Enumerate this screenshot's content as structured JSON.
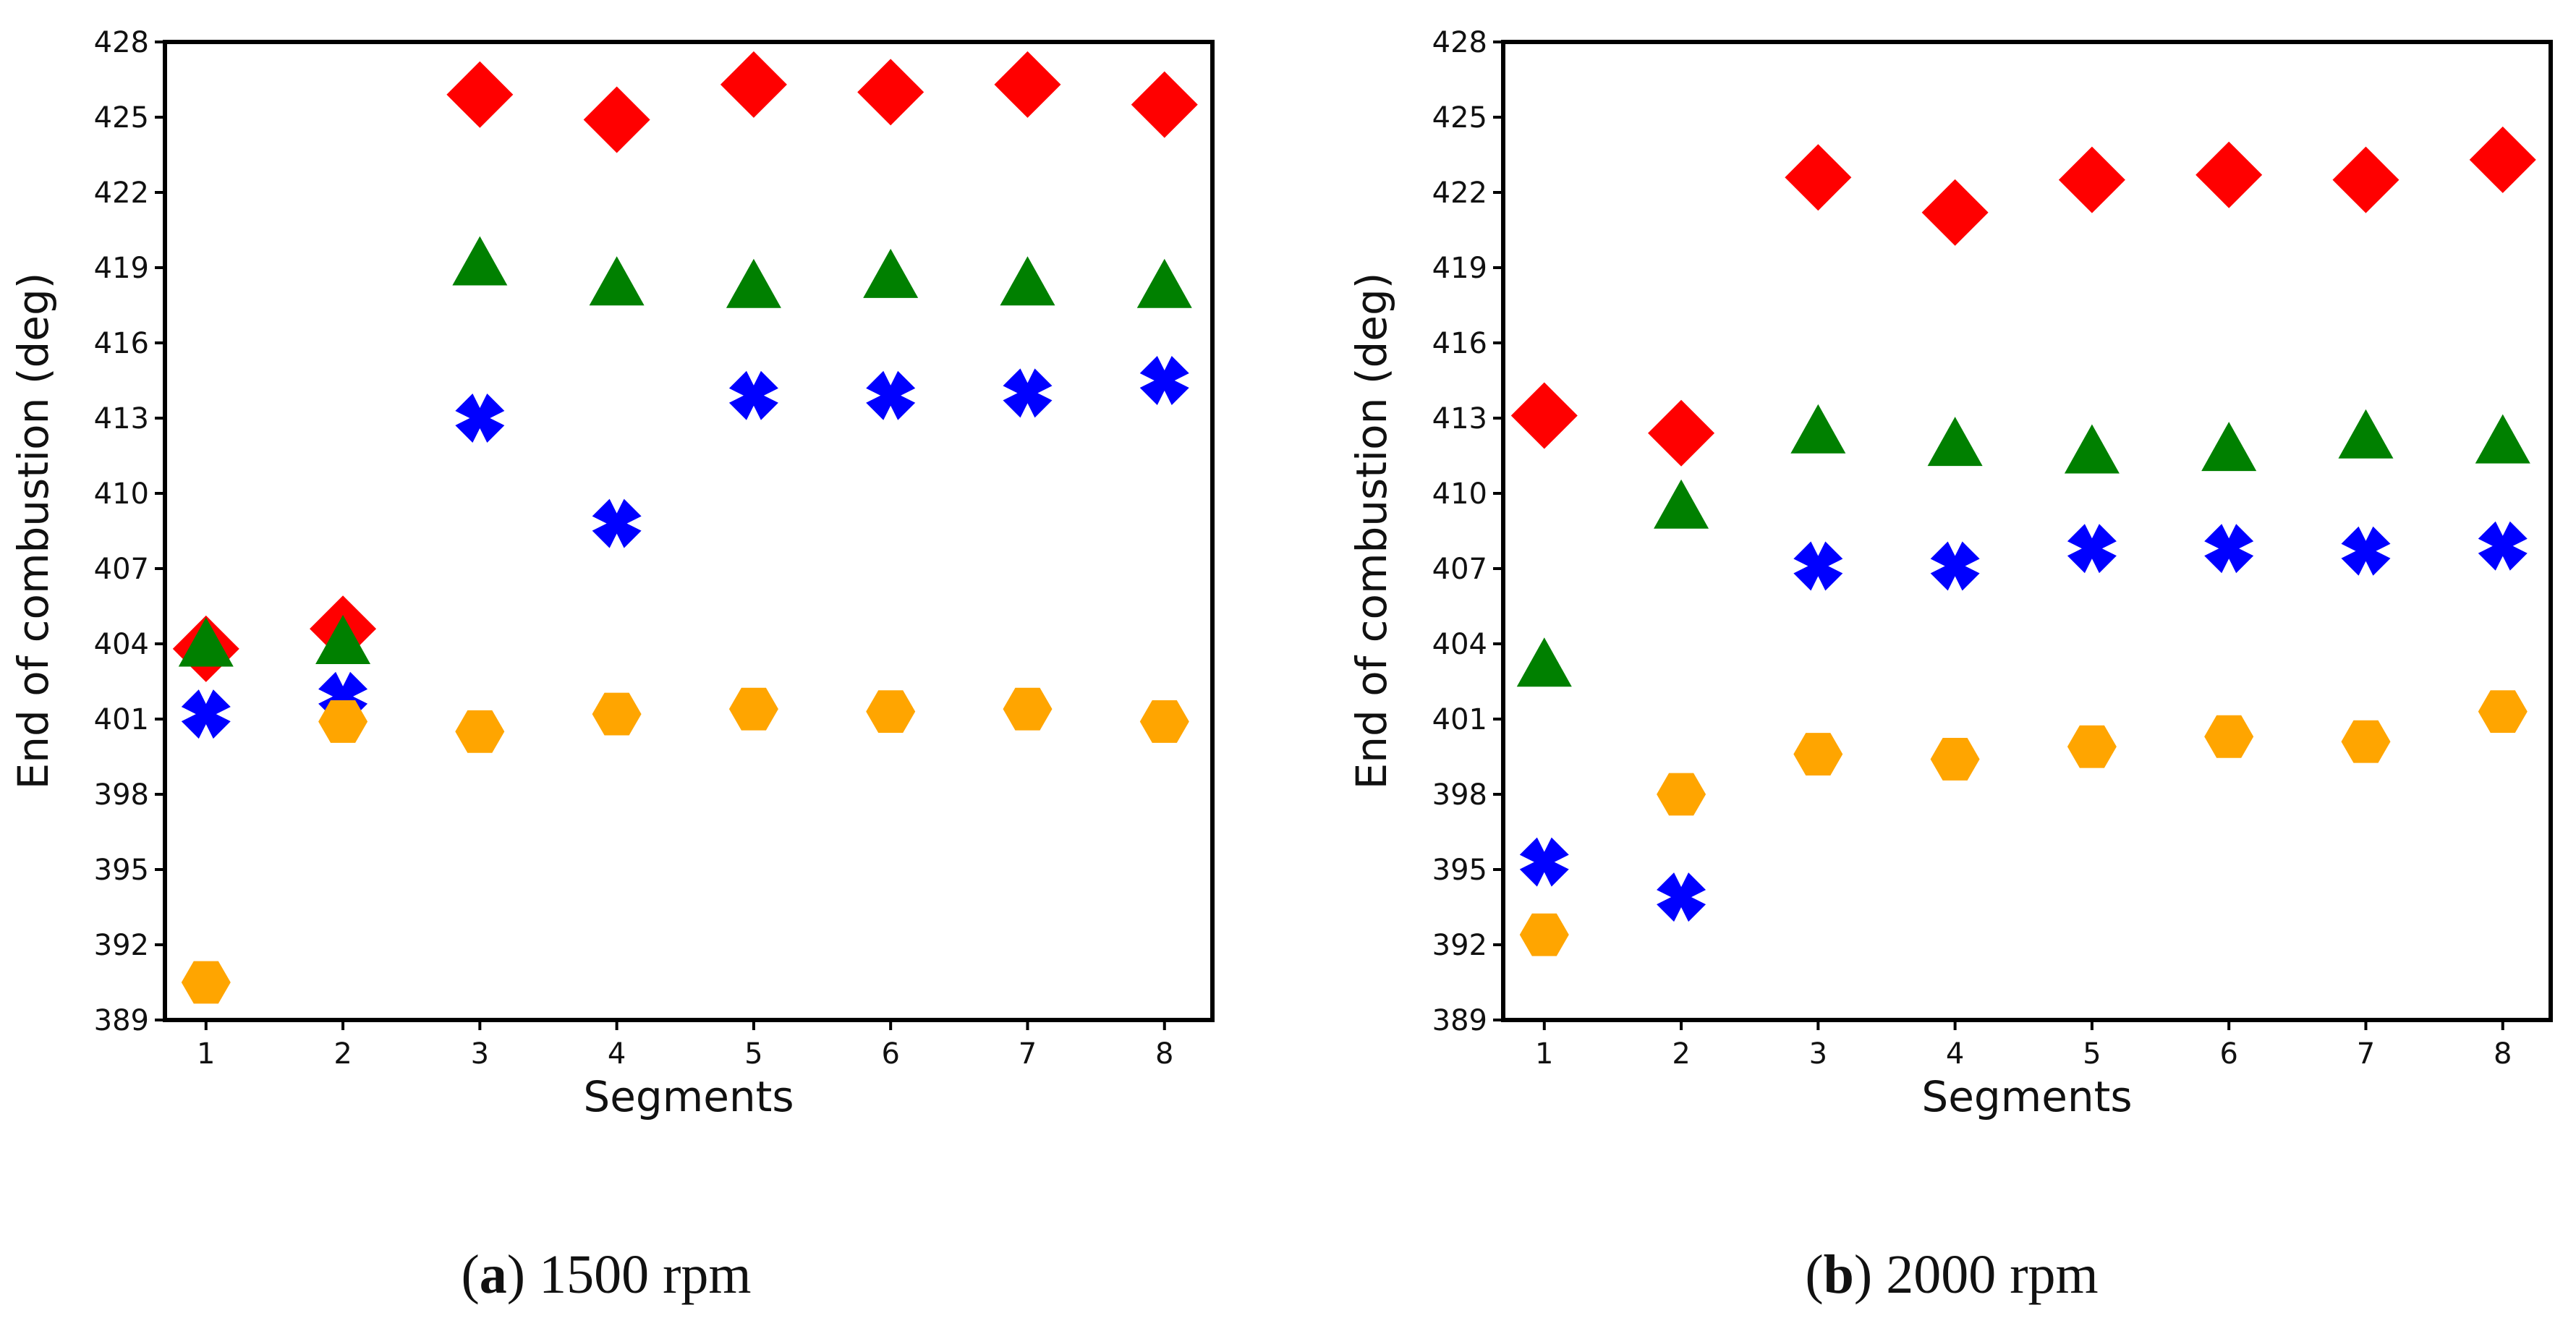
{
  "chart_data": [
    {
      "type": "scatter",
      "panel": "a",
      "caption_letter": "a",
      "caption_text": "1500 rpm",
      "xlabel": "Segments",
      "ylabel": "End of combustion (deg)",
      "x": [
        1,
        2,
        3,
        4,
        5,
        6,
        7,
        8
      ],
      "xticks": [
        "1",
        "2",
        "3",
        "4",
        "5",
        "6",
        "7",
        "8"
      ],
      "ylim": [
        389,
        428
      ],
      "yticks": [
        "389",
        "392",
        "395",
        "398",
        "401",
        "404",
        "407",
        "410",
        "413",
        "416",
        "419",
        "422",
        "425",
        "428"
      ],
      "series": [
        {
          "marker": "diamond",
          "color": "#ff0000",
          "values": [
            403.8,
            404.6,
            425.9,
            424.9,
            426.3,
            426.0,
            426.3,
            425.5
          ]
        },
        {
          "marker": "triangle",
          "color": "#008000",
          "values": [
            403.9,
            404.0,
            419.1,
            418.3,
            418.2,
            418.6,
            418.3,
            418.2
          ]
        },
        {
          "marker": "x",
          "color": "#0000ff",
          "values": [
            401.2,
            401.9,
            413.0,
            408.8,
            413.9,
            413.9,
            414.0,
            414.5
          ]
        },
        {
          "marker": "hexagon",
          "color": "#ffa500",
          "values": [
            390.5,
            400.9,
            400.5,
            401.2,
            401.4,
            401.3,
            401.4,
            400.9
          ]
        }
      ]
    },
    {
      "type": "scatter",
      "panel": "b",
      "caption_letter": "b",
      "caption_text": "2000 rpm",
      "xlabel": "Segments",
      "ylabel": "End of combustion (deg)",
      "x": [
        1,
        2,
        3,
        4,
        5,
        6,
        7,
        8
      ],
      "xticks": [
        "1",
        "2",
        "3",
        "4",
        "5",
        "6",
        "7",
        "8"
      ],
      "ylim": [
        389,
        428
      ],
      "yticks": [
        "389",
        "392",
        "395",
        "398",
        "401",
        "404",
        "407",
        "410",
        "413",
        "416",
        "419",
        "422",
        "425",
        "428"
      ],
      "series": [
        {
          "marker": "diamond",
          "color": "#ff0000",
          "values": [
            413.1,
            412.4,
            422.6,
            421.2,
            422.5,
            422.7,
            422.5,
            423.3
          ]
        },
        {
          "marker": "triangle",
          "color": "#008000",
          "values": [
            403.1,
            409.4,
            412.4,
            411.9,
            411.6,
            411.7,
            412.2,
            412.0
          ]
        },
        {
          "marker": "x",
          "color": "#0000ff",
          "values": [
            395.3,
            393.9,
            407.1,
            407.1,
            407.8,
            407.8,
            407.7,
            407.9
          ]
        },
        {
          "marker": "hexagon",
          "color": "#ffa500",
          "values": [
            392.4,
            398.0,
            399.6,
            399.4,
            399.9,
            400.3,
            400.1,
            401.3
          ]
        }
      ]
    }
  ]
}
